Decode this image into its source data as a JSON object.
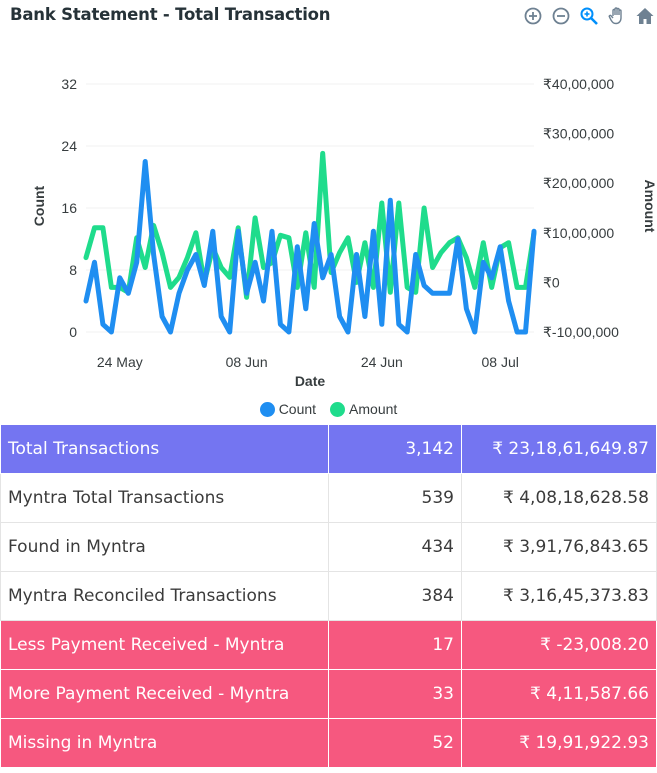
{
  "title": "Bank Statement - Total Transaction",
  "toolbar": [
    {
      "name": "zoom-in-icon",
      "glyph": "⊕"
    },
    {
      "name": "zoom-out-icon",
      "glyph": "⊖"
    },
    {
      "name": "zoom-select-icon",
      "glyph": "🔍"
    },
    {
      "name": "pan-icon",
      "glyph": "✋"
    },
    {
      "name": "home-icon",
      "glyph": "⌂"
    }
  ],
  "colors": {
    "count": "#1f8ef1",
    "amount": "#1fdc8c",
    "total_row": "#7475f1",
    "alert_row": "#f6587f"
  },
  "chart_data": {
    "type": "line",
    "xlabel": "Date",
    "x_ticks": [
      "24 May",
      "08 Jun",
      "24 Jun",
      "08 Jul"
    ],
    "y_left": {
      "label": "Count",
      "ticks": [
        "32",
        "24",
        "16",
        "8",
        "0"
      ],
      "range": [
        0,
        32
      ]
    },
    "y_right": {
      "label": "Amount",
      "ticks": [
        "₹40,00,000",
        "₹30,00,000",
        "₹20,00,000",
        "₹10,00,000",
        "₹0",
        "₹-10,00,000"
      ],
      "range": [
        -1000000,
        4000000
      ]
    },
    "legend": "bottom",
    "x_range": [
      "2024-05-20",
      "2024-07-12"
    ],
    "x": [
      "2024-05-20",
      "2024-05-21",
      "2024-05-22",
      "2024-05-23",
      "2024-05-24",
      "2024-05-25",
      "2024-05-26",
      "2024-05-27",
      "2024-05-28",
      "2024-05-29",
      "2024-05-30",
      "2024-05-31",
      "2024-06-01",
      "2024-06-02",
      "2024-06-03",
      "2024-06-04",
      "2024-06-05",
      "2024-06-06",
      "2024-06-07",
      "2024-06-08",
      "2024-06-09",
      "2024-06-10",
      "2024-06-11",
      "2024-06-12",
      "2024-06-13",
      "2024-06-14",
      "2024-06-15",
      "2024-06-16",
      "2024-06-17",
      "2024-06-18",
      "2024-06-19",
      "2024-06-20",
      "2024-06-21",
      "2024-06-22",
      "2024-06-23",
      "2024-06-24",
      "2024-06-25",
      "2024-06-26",
      "2024-06-27",
      "2024-06-28",
      "2024-06-29",
      "2024-06-30",
      "2024-07-01",
      "2024-07-02",
      "2024-07-03",
      "2024-07-04",
      "2024-07-05",
      "2024-07-06",
      "2024-07-07",
      "2024-07-08",
      "2024-07-09",
      "2024-07-10",
      "2024-07-11",
      "2024-07-12"
    ],
    "series": [
      {
        "name": "Count",
        "axis": "left",
        "values": [
          4,
          9,
          1,
          0,
          7,
          5,
          9,
          22,
          10,
          2,
          0,
          5,
          8,
          10,
          6,
          13,
          2,
          0,
          13,
          5,
          9,
          4,
          13,
          1,
          0,
          11,
          3,
          14,
          7,
          10,
          2,
          0,
          10,
          2,
          13,
          1,
          17,
          1,
          0,
          10,
          6,
          5,
          5,
          5,
          12,
          3,
          0,
          9,
          7,
          11,
          4,
          0,
          0,
          13
        ]
      },
      {
        "name": "Amount",
        "axis": "right",
        "values": [
          500000,
          1100000,
          1100000,
          -100000,
          -100000,
          -200000,
          900000,
          300000,
          1150000,
          600000,
          -100000,
          100000,
          500000,
          1000000,
          0,
          700000,
          300000,
          100000,
          1100000,
          -300000,
          1300000,
          300000,
          400000,
          950000,
          900000,
          -100000,
          1000000,
          -100000,
          2600000,
          200000,
          600000,
          900000,
          0,
          800000,
          -100000,
          1600000,
          -200000,
          1600000,
          -100000,
          -200000,
          1500000,
          300000,
          600000,
          800000,
          900000,
          500000,
          -100000,
          800000,
          -100000,
          700000,
          800000,
          -100000,
          -100000,
          1000000
        ]
      }
    ]
  },
  "table": {
    "rows": [
      {
        "style": "total",
        "label": "Total Transactions",
        "count": "3,142",
        "amount": "₹ 23,18,61,649.87"
      },
      {
        "style": "plain",
        "label": "Myntra Total Transactions",
        "count": "539",
        "amount": "₹ 4,08,18,628.58"
      },
      {
        "style": "plain",
        "label": "Found in Myntra",
        "count": "434",
        "amount": "₹ 3,91,76,843.65"
      },
      {
        "style": "plain",
        "label": "Myntra Reconciled Transactions",
        "count": "384",
        "amount": "₹ 3,16,45,373.83"
      },
      {
        "style": "alert",
        "label": "Less Payment Received - Myntra",
        "count": "17",
        "amount": "₹ -23,008.20"
      },
      {
        "style": "alert",
        "label": "More Payment Received - Myntra",
        "count": "33",
        "amount": "₹ 4,11,587.66"
      },
      {
        "style": "alert",
        "label": "Missing in Myntra",
        "count": "52",
        "amount": "₹ 19,91,922.93"
      }
    ]
  }
}
